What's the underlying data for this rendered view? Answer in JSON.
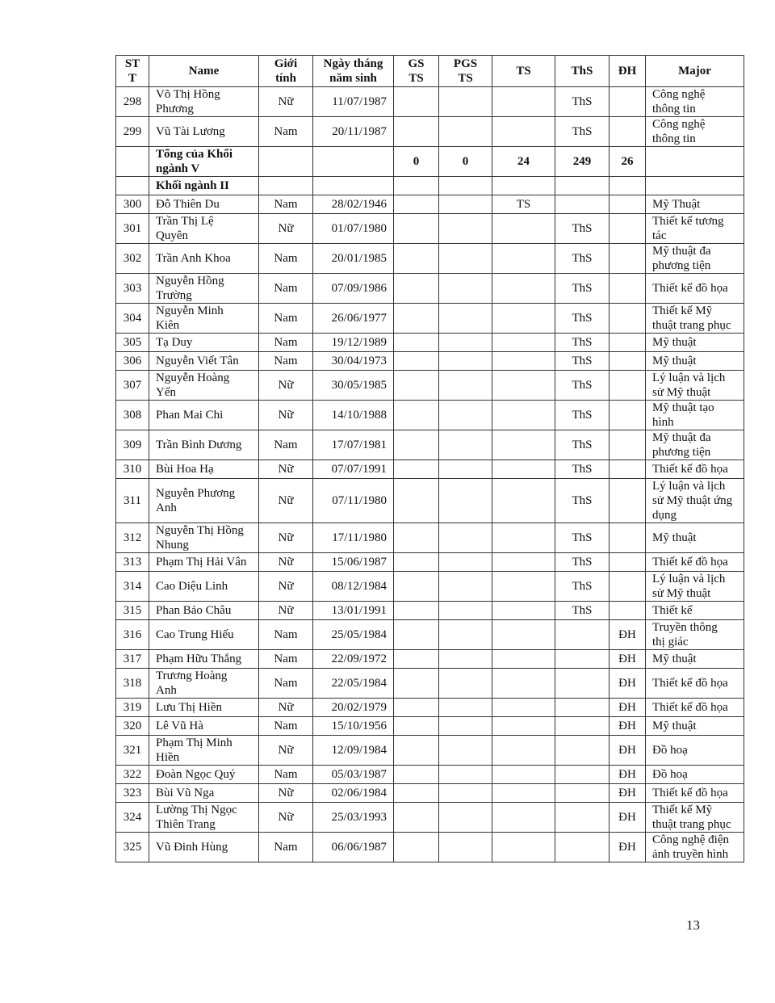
{
  "headers": [
    "ST\nT",
    "Name",
    "Giới\ntính",
    "Ngày tháng\nnăm sinh",
    "GS\nTS",
    "PGS\nTS",
    "TS",
    "ThS",
    "ĐH",
    "Major"
  ],
  "rows": [
    {
      "stt": "298",
      "name": "Võ Thị Hồng\nPhương",
      "gender": "Nữ",
      "dob": "11/07/1987",
      "gs": "",
      "pgs": "",
      "ts": "",
      "ths": "ThS",
      "dh": "",
      "major": "Công nghệ\nthông tin"
    },
    {
      "stt": "299",
      "name": "Vũ Tài Lương",
      "gender": "Nam",
      "dob": "20/11/1987",
      "gs": "",
      "pgs": "",
      "ts": "",
      "ths": "ThS",
      "dh": "",
      "major": "Công nghệ\nthông tin"
    },
    {
      "stt": "",
      "name": "Tổng của Khối\nngành V",
      "gender": "",
      "dob": "",
      "gs": "0",
      "pgs": "0",
      "ts": "24",
      "ths": "249",
      "dh": "26",
      "major": "",
      "bold": true
    },
    {
      "stt": "",
      "name": "Khối ngành II",
      "gender": "",
      "dob": "",
      "gs": "",
      "pgs": "",
      "ts": "",
      "ths": "",
      "dh": "",
      "major": "",
      "bold": true
    },
    {
      "stt": "300",
      "name": "Đỗ Thiên Du",
      "gender": "Nam",
      "dob": "28/02/1946",
      "gs": "",
      "pgs": "",
      "ts": "TS",
      "ths": "",
      "dh": "",
      "major": "Mỹ Thuật"
    },
    {
      "stt": "301",
      "name": "Trần Thị Lệ\nQuyên",
      "gender": "Nữ",
      "dob": "01/07/1980",
      "gs": "",
      "pgs": "",
      "ts": "",
      "ths": "ThS",
      "dh": "",
      "major": "Thiết kế tương\ntác"
    },
    {
      "stt": "302",
      "name": "Trần Anh Khoa",
      "gender": "Nam",
      "dob": "20/01/1985",
      "gs": "",
      "pgs": "",
      "ts": "",
      "ths": "ThS",
      "dh": "",
      "major": "Mỹ thuật đa\nphương tiện"
    },
    {
      "stt": "303",
      "name": "Nguyễn Hồng\nTrường",
      "gender": "Nam",
      "dob": "07/09/1986",
      "gs": "",
      "pgs": "",
      "ts": "",
      "ths": "ThS",
      "dh": "",
      "major": "Thiết kế đồ họa"
    },
    {
      "stt": "304",
      "name": "Nguyễn Minh\nKiên",
      "gender": "Nam",
      "dob": "26/06/1977",
      "gs": "",
      "pgs": "",
      "ts": "",
      "ths": "ThS",
      "dh": "",
      "major": "Thiết kế Mỹ\nthuật trang phục"
    },
    {
      "stt": "305",
      "name": "Tạ Duy",
      "gender": "Nam",
      "dob": "19/12/1989",
      "gs": "",
      "pgs": "",
      "ts": "",
      "ths": "ThS",
      "dh": "",
      "major": "Mỹ thuật"
    },
    {
      "stt": "306",
      "name": "Nguyễn Viết Tân",
      "gender": "Nam",
      "dob": "30/04/1973",
      "gs": "",
      "pgs": "",
      "ts": "",
      "ths": "ThS",
      "dh": "",
      "major": "Mỹ thuật"
    },
    {
      "stt": "307",
      "name": "Nguyễn Hoàng\nYến",
      "gender": "Nữ",
      "dob": "30/05/1985",
      "gs": "",
      "pgs": "",
      "ts": "",
      "ths": "ThS",
      "dh": "",
      "major": "Lý luận và lịch\nsử Mỹ thuật"
    },
    {
      "stt": "308",
      "name": "Phan Mai Chi",
      "gender": "Nữ",
      "dob": "14/10/1988",
      "gs": "",
      "pgs": "",
      "ts": "",
      "ths": "ThS",
      "dh": "",
      "major": "Mỹ thuật tạo\nhình"
    },
    {
      "stt": "309",
      "name": "Trần Bình Dương",
      "gender": "Nam",
      "dob": "17/07/1981",
      "gs": "",
      "pgs": "",
      "ts": "",
      "ths": "ThS",
      "dh": "",
      "major": "Mỹ thuật đa\nphương tiện"
    },
    {
      "stt": "310",
      "name": "Bùi Hoa Hạ",
      "gender": "Nữ",
      "dob": "07/07/1991",
      "gs": "",
      "pgs": "",
      "ts": "",
      "ths": "ThS",
      "dh": "",
      "major": "Thiết kế đồ họa"
    },
    {
      "stt": "311",
      "name": "Nguyễn Phương\nAnh",
      "gender": "Nữ",
      "dob": "07/11/1980",
      "gs": "",
      "pgs": "",
      "ts": "",
      "ths": "ThS",
      "dh": "",
      "major": "Lý luận và lịch\nsử Mỹ thuật ứng\ndụng"
    },
    {
      "stt": "312",
      "name": "Nguyễn Thị Hồng\nNhung",
      "gender": "Nữ",
      "dob": "17/11/1980",
      "gs": "",
      "pgs": "",
      "ts": "",
      "ths": "ThS",
      "dh": "",
      "major": "Mỹ thuật"
    },
    {
      "stt": "313",
      "name": "Phạm Thị Hải Vân",
      "gender": "Nữ",
      "dob": "15/06/1987",
      "gs": "",
      "pgs": "",
      "ts": "",
      "ths": "ThS",
      "dh": "",
      "major": "Thiết kế đồ họa"
    },
    {
      "stt": "314",
      "name": "Cao Diệu Linh",
      "gender": "Nữ",
      "dob": "08/12/1984",
      "gs": "",
      "pgs": "",
      "ts": "",
      "ths": "ThS",
      "dh": "",
      "major": "Lý luận và lịch\nsử Mỹ thuật"
    },
    {
      "stt": "315",
      "name": "Phan Bảo Châu",
      "gender": "Nữ",
      "dob": "13/01/1991",
      "gs": "",
      "pgs": "",
      "ts": "",
      "ths": "ThS",
      "dh": "",
      "major": "Thiết kế"
    },
    {
      "stt": "316",
      "name": "Cao Trung Hiếu",
      "gender": "Nam",
      "dob": "25/05/1984",
      "gs": "",
      "pgs": "",
      "ts": "",
      "ths": "",
      "dh": "ĐH",
      "major": "Truyền thông\nthị giác"
    },
    {
      "stt": "317",
      "name": "Phạm Hữu Thắng",
      "gender": "Nam",
      "dob": "22/09/1972",
      "gs": "",
      "pgs": "",
      "ts": "",
      "ths": "",
      "dh": "ĐH",
      "major": "Mỹ thuật"
    },
    {
      "stt": "318",
      "name": "Trương Hoàng\nAnh",
      "gender": "Nam",
      "dob": "22/05/1984",
      "gs": "",
      "pgs": "",
      "ts": "",
      "ths": "",
      "dh": "ĐH",
      "major": "Thiết kế đồ họa"
    },
    {
      "stt": "319",
      "name": "Lưu Thị Hiền",
      "gender": "Nữ",
      "dob": "20/02/1979",
      "gs": "",
      "pgs": "",
      "ts": "",
      "ths": "",
      "dh": "ĐH",
      "major": "Thiết kế đồ họa"
    },
    {
      "stt": "320",
      "name": "Lê Vũ Hà",
      "gender": "Nam",
      "dob": "15/10/1956",
      "gs": "",
      "pgs": "",
      "ts": "",
      "ths": "",
      "dh": "ĐH",
      "major": "Mỹ thuật"
    },
    {
      "stt": "321",
      "name": "Phạm Thị Minh\nHiền",
      "gender": "Nữ",
      "dob": "12/09/1984",
      "gs": "",
      "pgs": "",
      "ts": "",
      "ths": "",
      "dh": "ĐH",
      "major": "Đồ hoạ"
    },
    {
      "stt": "322",
      "name": "Đoàn Ngọc Quý",
      "gender": "Nam",
      "dob": "05/03/1987",
      "gs": "",
      "pgs": "",
      "ts": "",
      "ths": "",
      "dh": "ĐH",
      "major": "Đồ hoạ"
    },
    {
      "stt": "323",
      "name": "Bùi Vũ Nga",
      "gender": "Nữ",
      "dob": "02/06/1984",
      "gs": "",
      "pgs": "",
      "ts": "",
      "ths": "",
      "dh": "ĐH",
      "major": "Thiết kế đồ họa"
    },
    {
      "stt": "324",
      "name": "Lường Thị Ngọc\nThiên Trang",
      "gender": "Nữ",
      "dob": "25/03/1993",
      "gs": "",
      "pgs": "",
      "ts": "",
      "ths": "",
      "dh": "ĐH",
      "major": "Thiết kế Mỹ\nthuật trang phục"
    },
    {
      "stt": "325",
      "name": "Vũ Đinh Hùng",
      "gender": "Nam",
      "dob": "06/06/1987",
      "gs": "",
      "pgs": "",
      "ts": "",
      "ths": "",
      "dh": "ĐH",
      "major": "Công nghệ điện\nảnh truyền hình"
    }
  ],
  "page_number": "13"
}
